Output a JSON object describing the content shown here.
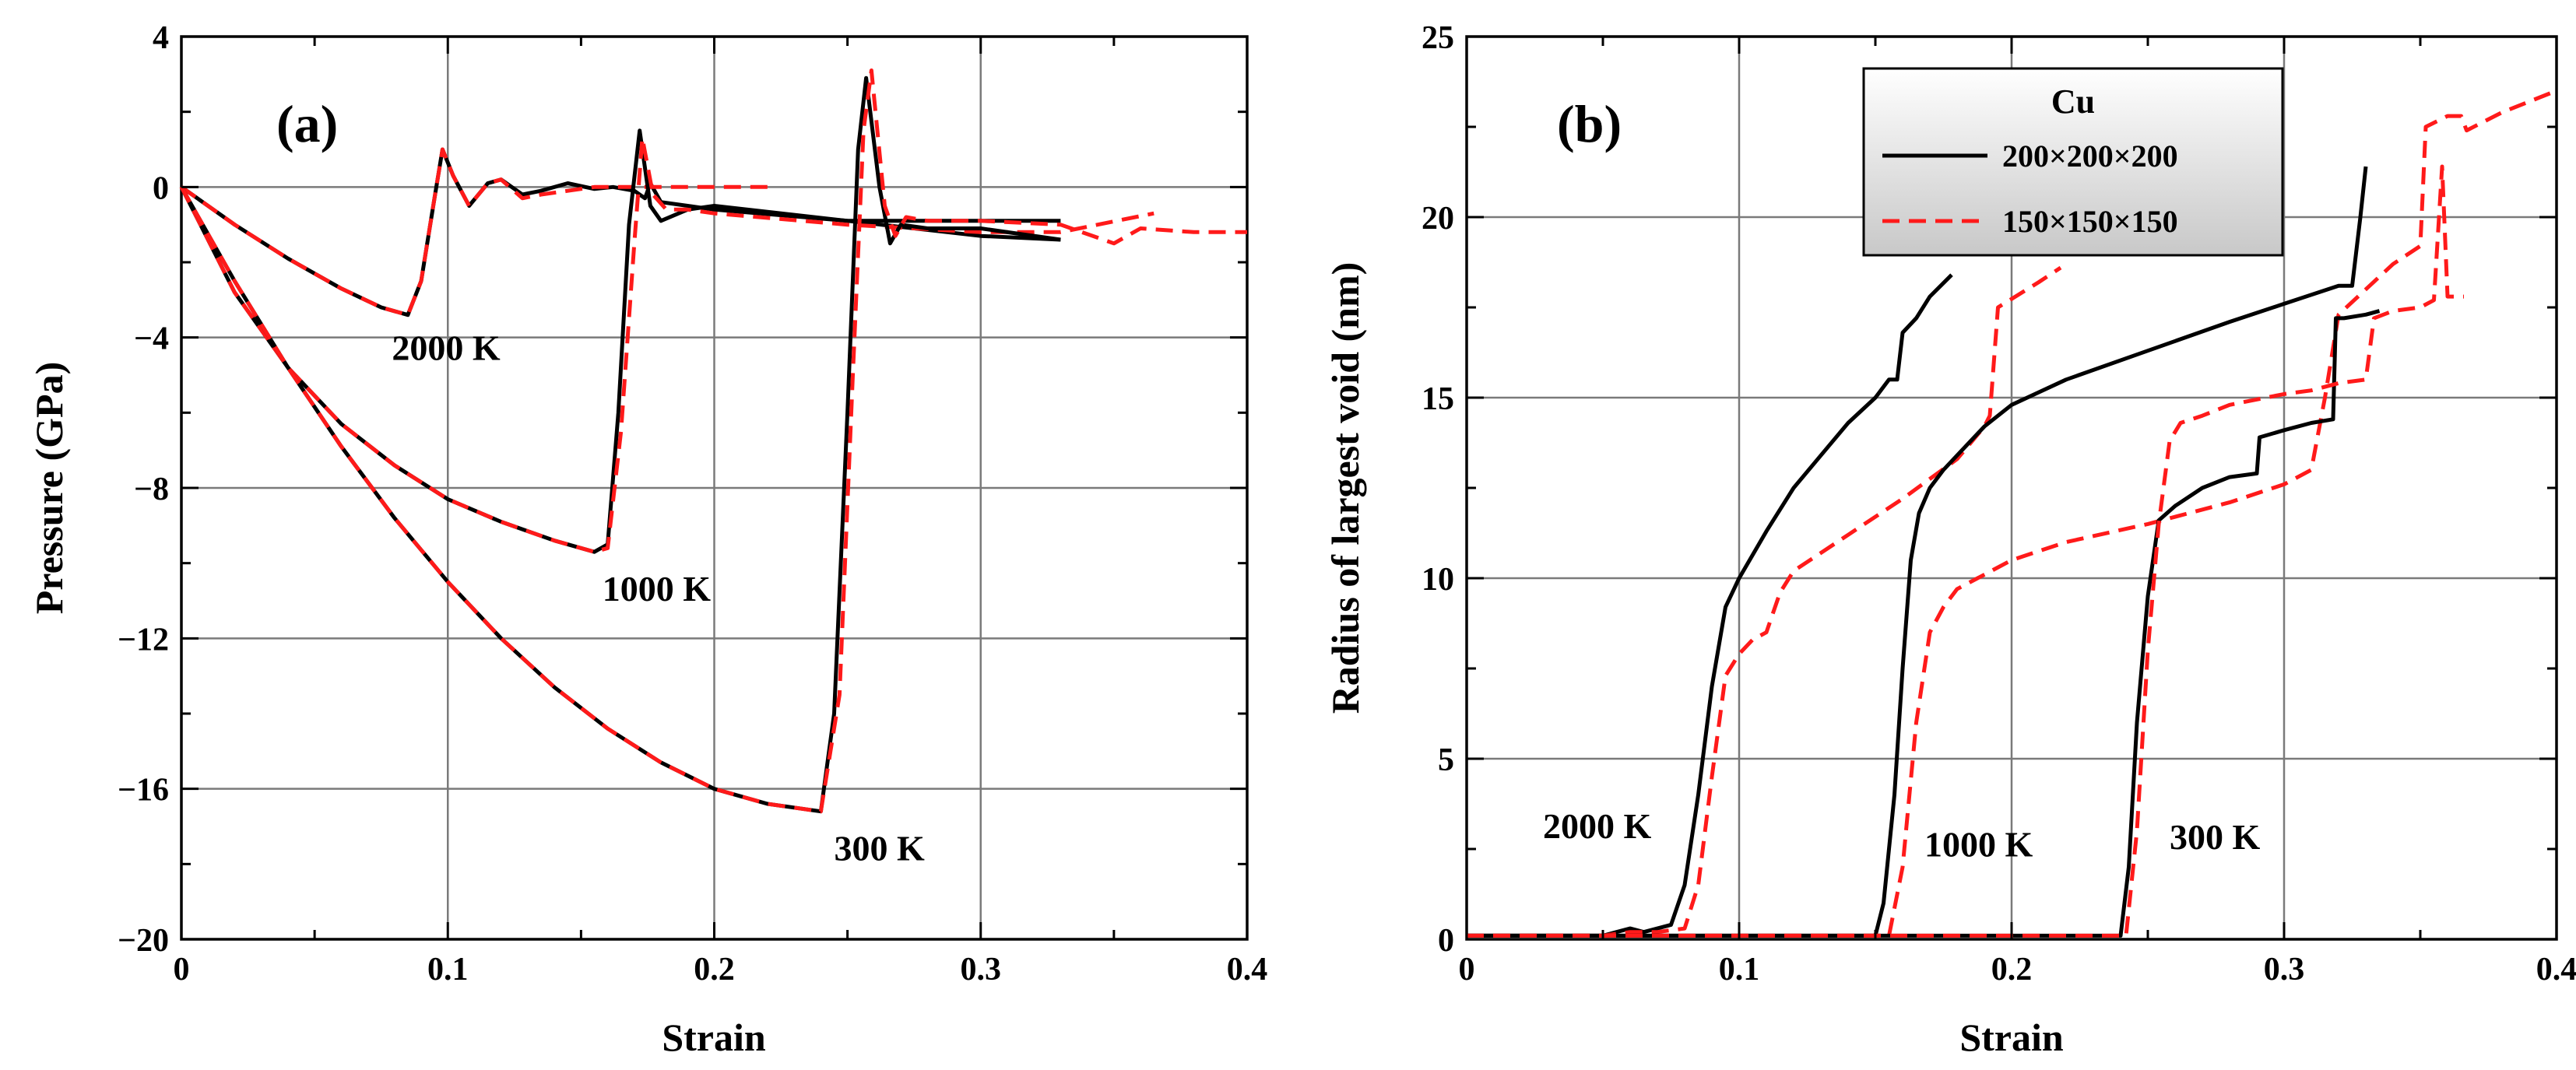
{
  "chart_data": [
    {
      "type": "line",
      "panel_label": "(a)",
      "xlabel": "Strain",
      "ylabel": "Pressure (GPa)",
      "xlim": [
        0,
        0.4
      ],
      "ylim": [
        -20,
        4
      ],
      "xticks": [
        0,
        0.1,
        0.2,
        0.3,
        0.4
      ],
      "xtick_labels": [
        "0",
        "0.1",
        "0.2",
        "0.3",
        "0.4"
      ],
      "yticks": [
        -20,
        -16,
        -12,
        -8,
        -4,
        0,
        4
      ],
      "ytick_labels": [
        "−20",
        "−16",
        "−12",
        "−8",
        "−4",
        "0",
        "4"
      ],
      "grid": true,
      "annotations": [
        {
          "text": "2000 K",
          "x": 0.079,
          "y": -4.6
        },
        {
          "text": "1000 K",
          "x": 0.158,
          "y": -11.0
        },
        {
          "text": "300 K",
          "x": 0.245,
          "y": -17.9
        }
      ],
      "series": [
        {
          "name": "2000 K, 200×200×200",
          "style": "solid",
          "color": "#000000",
          "x": [
            0,
            0.02,
            0.04,
            0.06,
            0.075,
            0.085,
            0.09,
            0.095,
            0.098,
            0.102,
            0.108,
            0.115,
            0.12,
            0.128,
            0.135,
            0.145,
            0.155,
            0.162,
            0.17,
            0.174,
            0.176,
            0.18,
            0.2,
            0.25,
            0.3,
            0.33
          ],
          "y": [
            0,
            -1.0,
            -1.9,
            -2.7,
            -3.2,
            -3.4,
            -2.5,
            -0.3,
            1.0,
            0.3,
            -0.5,
            0.1,
            0.2,
            -0.2,
            -0.1,
            0.1,
            -0.05,
            0.0,
            -0.1,
            -0.3,
            0.1,
            -0.4,
            -0.6,
            -0.9,
            -0.9,
            -0.9
          ]
        },
        {
          "name": "2000 K, 150×150×150",
          "style": "dashed",
          "color": "#ff1a1a",
          "x": [
            0,
            0.02,
            0.04,
            0.06,
            0.075,
            0.085,
            0.09,
            0.095,
            0.098,
            0.102,
            0.108,
            0.115,
            0.12,
            0.128,
            0.135,
            0.145,
            0.155,
            0.17,
            0.19,
            0.22
          ],
          "y": [
            0,
            -1.0,
            -1.9,
            -2.7,
            -3.2,
            -3.4,
            -2.5,
            -0.3,
            1.0,
            0.3,
            -0.5,
            0.1,
            0.2,
            -0.3,
            -0.2,
            -0.1,
            0.0,
            0.0,
            0.0,
            0.0
          ]
        },
        {
          "name": "1000 K, 200×200×200",
          "style": "solid",
          "color": "#000000",
          "x": [
            0,
            0.02,
            0.04,
            0.06,
            0.08,
            0.1,
            0.12,
            0.14,
            0.155,
            0.16,
            0.164,
            0.168,
            0.172,
            0.176,
            0.18,
            0.19,
            0.2,
            0.25,
            0.3,
            0.33
          ],
          "y": [
            0,
            -2.8,
            -4.8,
            -6.3,
            -7.4,
            -8.3,
            -8.9,
            -9.4,
            -9.7,
            -9.5,
            -6.0,
            -1.0,
            1.5,
            -0.5,
            -0.9,
            -0.6,
            -0.5,
            -0.9,
            -1.3,
            -1.4
          ]
        },
        {
          "name": "1000 K, 150×150×150",
          "style": "dashed",
          "color": "#ff1a1a",
          "x": [
            0,
            0.02,
            0.04,
            0.06,
            0.08,
            0.1,
            0.12,
            0.14,
            0.155,
            0.16,
            0.165,
            0.17,
            0.173,
            0.177,
            0.182,
            0.19,
            0.2,
            0.25,
            0.3,
            0.33,
            0.365
          ],
          "y": [
            0,
            -2.8,
            -4.8,
            -6.3,
            -7.4,
            -8.3,
            -8.9,
            -9.4,
            -9.7,
            -9.6,
            -6.5,
            -1.5,
            1.3,
            -0.2,
            -0.6,
            -0.6,
            -0.7,
            -1.0,
            -1.2,
            -1.2,
            -0.7
          ]
        },
        {
          "name": "300 K, 200×200×200",
          "style": "solid",
          "color": "#000000",
          "x": [
            0,
            0.02,
            0.04,
            0.06,
            0.08,
            0.1,
            0.12,
            0.14,
            0.16,
            0.18,
            0.2,
            0.22,
            0.24,
            0.245,
            0.25,
            0.254,
            0.257,
            0.262,
            0.266,
            0.27,
            0.28,
            0.3,
            0.33
          ],
          "y": [
            0,
            -2.5,
            -4.8,
            -6.9,
            -8.8,
            -10.5,
            -12.0,
            -13.3,
            -14.4,
            -15.3,
            -16.0,
            -16.4,
            -16.6,
            -14.0,
            -6.0,
            1.0,
            2.9,
            0.0,
            -1.5,
            -1.0,
            -1.1,
            -1.1,
            -1.4
          ]
        },
        {
          "name": "300 K, 150×150×150",
          "style": "dashed",
          "color": "#ff1a1a",
          "x": [
            0,
            0.02,
            0.04,
            0.06,
            0.08,
            0.1,
            0.12,
            0.14,
            0.16,
            0.18,
            0.2,
            0.22,
            0.24,
            0.247,
            0.252,
            0.256,
            0.259,
            0.264,
            0.268,
            0.272,
            0.28,
            0.3,
            0.33,
            0.35,
            0.36,
            0.38,
            0.4
          ],
          "y": [
            0,
            -2.5,
            -4.8,
            -6.9,
            -8.8,
            -10.5,
            -12.0,
            -13.3,
            -14.4,
            -15.3,
            -16.0,
            -16.4,
            -16.6,
            -13.5,
            -5.0,
            1.5,
            3.1,
            -0.5,
            -1.3,
            -0.8,
            -0.9,
            -0.9,
            -1.0,
            -1.5,
            -1.1,
            -1.2,
            -1.2
          ]
        }
      ]
    },
    {
      "type": "line",
      "panel_label": "(b)",
      "xlabel": "Strain",
      "ylabel": "Radius of largest void (nm)",
      "xlim": [
        0,
        0.4
      ],
      "ylim": [
        0,
        25
      ],
      "xticks": [
        0,
        0.1,
        0.2,
        0.3,
        0.4
      ],
      "xtick_labels": [
        "0",
        "0.1",
        "0.2",
        "0.3",
        "0.4"
      ],
      "yticks": [
        0,
        5,
        10,
        15,
        20,
        25
      ],
      "ytick_labels": [
        "0",
        "5",
        "10",
        "15",
        "20",
        "25"
      ],
      "grid": true,
      "legend": {
        "title": "Cu",
        "position": "top-center",
        "entries": [
          "200×200×200",
          "150×150×150"
        ]
      },
      "annotations": [
        {
          "text": "2000 K",
          "x": 0.028,
          "y": 2.8
        },
        {
          "text": "1000 K",
          "x": 0.168,
          "y": 2.3
        },
        {
          "text": "300 K",
          "x": 0.258,
          "y": 2.5
        }
      ],
      "series": [
        {
          "name": "2000 K, 200×200×200",
          "style": "solid",
          "color": "#000000",
          "x": [
            0,
            0.05,
            0.055,
            0.06,
            0.065,
            0.07,
            0.075,
            0.08,
            0.085,
            0.09,
            0.095,
            0.1,
            0.11,
            0.12,
            0.13,
            0.14,
            0.15,
            0.155,
            0.158,
            0.16,
            0.165,
            0.17,
            0.178
          ],
          "y": [
            0.1,
            0.1,
            0.2,
            0.3,
            0.2,
            0.3,
            0.4,
            1.5,
            4.0,
            7.0,
            9.2,
            10.0,
            11.3,
            12.5,
            13.4,
            14.3,
            15.0,
            15.5,
            15.5,
            16.8,
            17.2,
            17.8,
            18.4
          ]
        },
        {
          "name": "2000 K, 150×150×150",
          "style": "dashed",
          "color": "#ff1a1a",
          "x": [
            0,
            0.05,
            0.06,
            0.07,
            0.08,
            0.085,
            0.09,
            0.095,
            0.1,
            0.105,
            0.11,
            0.115,
            0.12,
            0.14,
            0.16,
            0.18,
            0.19,
            0.192,
            0.195,
            0.21,
            0.218
          ],
          "y": [
            0.1,
            0.1,
            0.2,
            0.2,
            0.3,
            1.5,
            4.5,
            7.3,
            7.9,
            8.3,
            8.5,
            9.6,
            10.2,
            11.2,
            12.2,
            13.3,
            14.2,
            14.5,
            17.5,
            18.2,
            18.6
          ]
        },
        {
          "name": "1000 K, 200×200×200",
          "style": "solid",
          "color": "#000000",
          "x": [
            0,
            0.15,
            0.153,
            0.157,
            0.16,
            0.163,
            0.166,
            0.17,
            0.175,
            0.18,
            0.19,
            0.2,
            0.22,
            0.25,
            0.28,
            0.3,
            0.32,
            0.325,
            0.328,
            0.33
          ],
          "y": [
            0.1,
            0.1,
            1.0,
            4.0,
            7.5,
            10.5,
            11.8,
            12.5,
            13.0,
            13.4,
            14.2,
            14.8,
            15.5,
            16.3,
            17.1,
            17.6,
            18.1,
            18.1,
            20.0,
            21.4
          ]
        },
        {
          "name": "1000 K, 150×150×150",
          "style": "dashed",
          "color": "#ff1a1a",
          "x": [
            0,
            0.155,
            0.16,
            0.165,
            0.17,
            0.175,
            0.18,
            0.19,
            0.2,
            0.22,
            0.25,
            0.28,
            0.3,
            0.31,
            0.315,
            0.32,
            0.34,
            0.35,
            0.352,
            0.36,
            0.365,
            0.367,
            0.38,
            0.4
          ],
          "y": [
            0.1,
            0.1,
            2.0,
            6.0,
            8.5,
            9.2,
            9.7,
            10.1,
            10.5,
            11.0,
            11.5,
            12.1,
            12.6,
            13.0,
            15.0,
            17.3,
            18.7,
            19.2,
            22.5,
            22.8,
            22.8,
            22.4,
            22.9,
            23.5
          ]
        },
        {
          "name": "300 K, 200×200×200",
          "style": "solid",
          "color": "#000000",
          "x": [
            0,
            0.24,
            0.243,
            0.246,
            0.25,
            0.254,
            0.26,
            0.27,
            0.28,
            0.29,
            0.291,
            0.3,
            0.31,
            0.318,
            0.319,
            0.322,
            0.33,
            0.335
          ],
          "y": [
            0.1,
            0.1,
            2.0,
            6.0,
            9.5,
            11.6,
            12.0,
            12.5,
            12.8,
            12.9,
            13.9,
            14.1,
            14.3,
            14.4,
            17.2,
            17.2,
            17.3,
            17.4
          ]
        },
        {
          "name": "300 K, 150×150×150",
          "style": "dashed",
          "color": "#ff1a1a",
          "x": [
            0,
            0.242,
            0.246,
            0.25,
            0.254,
            0.258,
            0.262,
            0.27,
            0.28,
            0.3,
            0.31,
            0.32,
            0.33,
            0.333,
            0.34,
            0.35,
            0.355,
            0.358,
            0.36,
            0.363,
            0.366
          ],
          "y": [
            0.1,
            0.1,
            3.0,
            8.0,
            11.5,
            13.8,
            14.3,
            14.5,
            14.8,
            15.1,
            15.2,
            15.4,
            15.5,
            17.2,
            17.4,
            17.5,
            17.7,
            21.4,
            17.8,
            17.8,
            17.8
          ]
        }
      ]
    }
  ]
}
